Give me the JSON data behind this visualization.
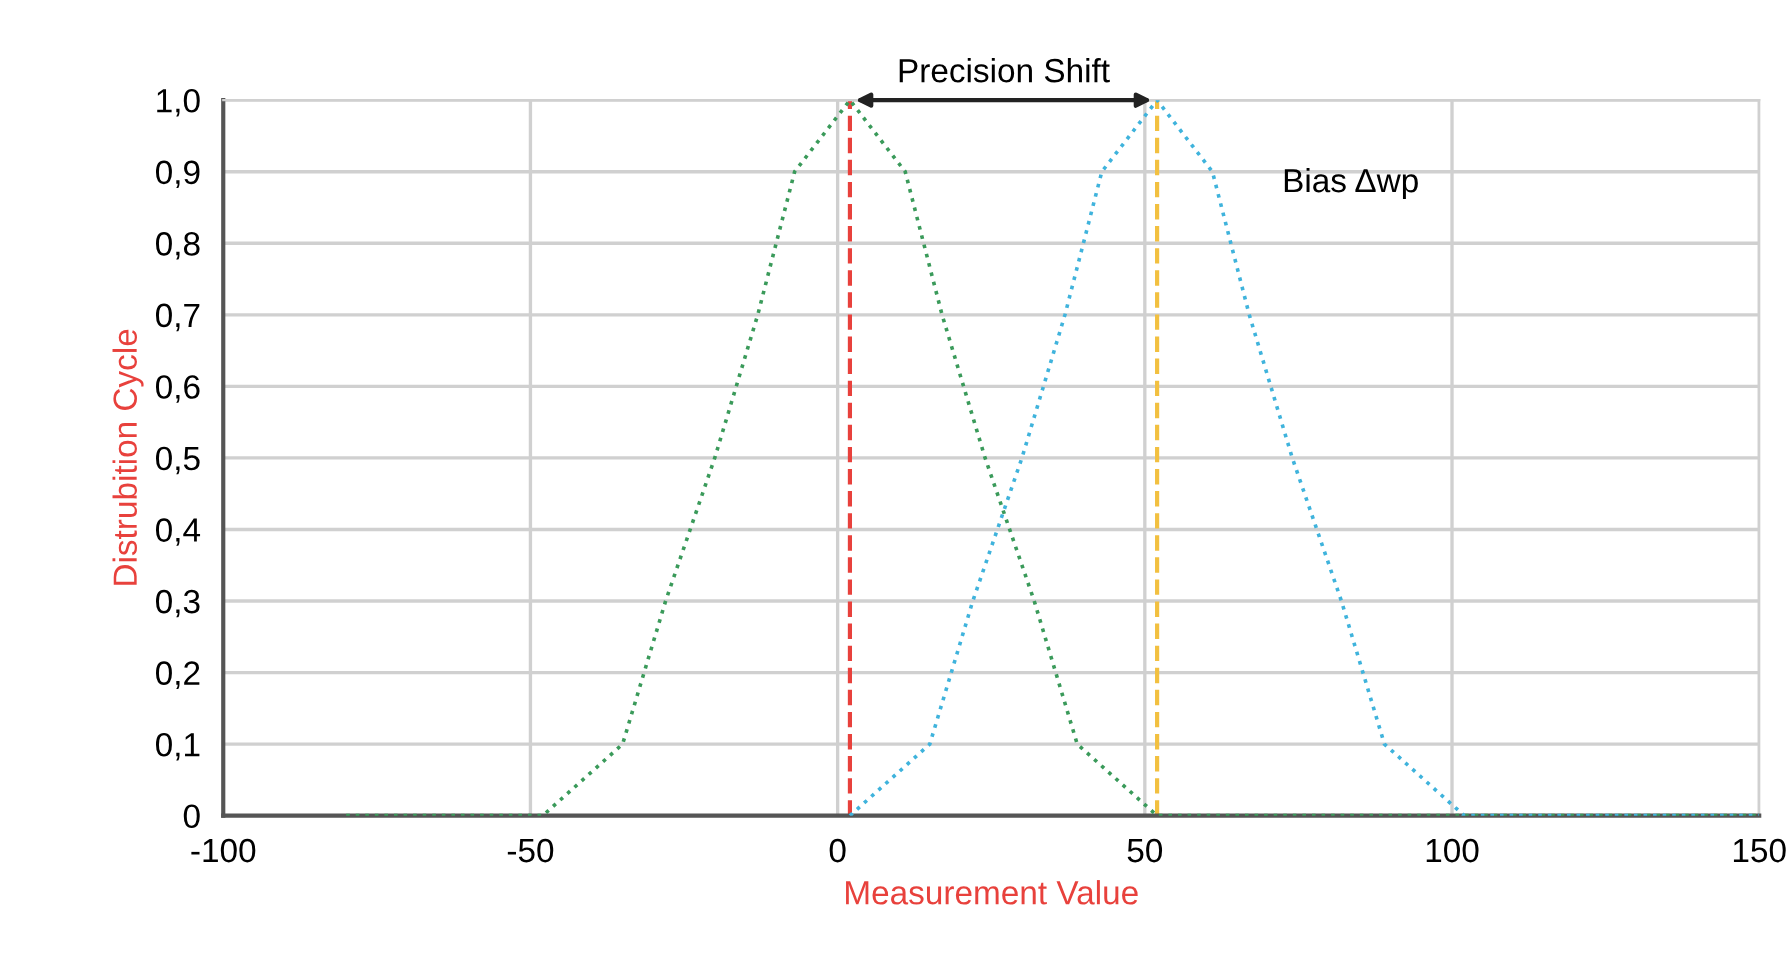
{
  "chart_data": {
    "type": "line",
    "xlabel": "Measurement Value",
    "ylabel": "Distrubition Cycle",
    "xlim": [
      -100,
      150
    ],
    "xticks": [
      -100,
      -50,
      0,
      50,
      100,
      150
    ],
    "ylim": [
      0,
      1.0
    ],
    "yticks": [
      {
        "value": 0,
        "label": "0"
      },
      {
        "value": 0.1,
        "label": "0,1"
      },
      {
        "value": 0.2,
        "label": "0,2"
      },
      {
        "value": 0.3,
        "label": "0,3"
      },
      {
        "value": 0.4,
        "label": "0,4"
      },
      {
        "value": 0.5,
        "label": "0,5"
      },
      {
        "value": 0.6,
        "label": "0,6"
      },
      {
        "value": 0.7,
        "label": "0,7"
      },
      {
        "value": 0.8,
        "label": "0,8"
      },
      {
        "value": 0.9,
        "label": "0,9"
      },
      {
        "value": 1.0,
        "label": "1,0"
      }
    ],
    "grid": true,
    "line_style": "dotted",
    "marker": "none",
    "series": [
      {
        "color": "#3a9a5a",
        "x": [
          -80,
          -48,
          -35,
          -28,
          -20,
          -13,
          -7,
          2,
          11,
          17,
          24,
          32,
          39,
          52,
          150
        ],
        "values": [
          0,
          0,
          0.1,
          0.3,
          0.5,
          0.7,
          0.9,
          1.0,
          0.9,
          0.7,
          0.5,
          0.3,
          0.1,
          0,
          0
        ]
      },
      {
        "color": "#3fb3dc",
        "x": [
          2,
          15,
          22,
          30,
          37,
          43,
          52,
          61,
          67,
          74,
          82,
          89,
          102,
          150
        ],
        "values": [
          0,
          0.1,
          0.3,
          0.5,
          0.7,
          0.9,
          1.0,
          0.9,
          0.7,
          0.5,
          0.3,
          0.1,
          0,
          0
        ]
      }
    ],
    "ref_lines": [
      {
        "axis": "x",
        "value": 2,
        "color": "#e8413c",
        "line_style": "dashed"
      },
      {
        "axis": "x",
        "value": 52,
        "color": "#f2c040",
        "line_style": "dashed"
      }
    ],
    "annotations": [
      "Precision Shift",
      "Bias Δwp"
    ]
  }
}
